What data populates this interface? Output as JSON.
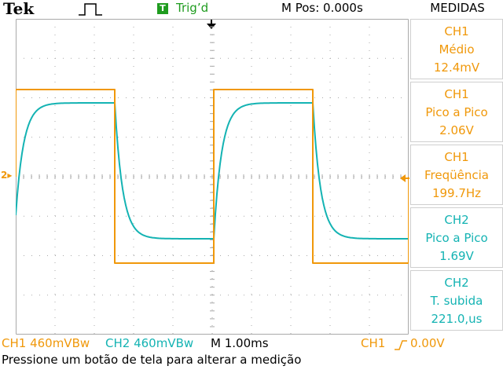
{
  "header": {
    "brand": "Tek",
    "acquisition_icon": "single-pulse-icon",
    "trigger_badge": "T",
    "trigger_status": "Trig’d",
    "horizontal_position": "M Pos: 0.000s",
    "menu_title": "MEDIDAS"
  },
  "colors": {
    "ch1": "#f0980a",
    "ch2": "#14b3b3",
    "trigger_badge": "#1f9c1f",
    "grid": "#a9a9a9"
  },
  "measurements": [
    {
      "channel": "CH1",
      "label": "Médio",
      "value": "12.4mV"
    },
    {
      "channel": "CH1",
      "label": "Pico a Pico",
      "value": "2.06V"
    },
    {
      "channel": "CH1",
      "label": "Freqüência",
      "value": "199.7Hz"
    },
    {
      "channel": "CH2",
      "label": "Pico a Pico",
      "value": "1.69V"
    },
    {
      "channel": "CH2",
      "label": "T. subida",
      "value": "221.0,us"
    }
  ],
  "status": {
    "ch1_scale": "CH1  460mVBw",
    "ch2_scale": "CH2  460mVBw",
    "timebase": "M 1.00ms",
    "trigger_source": "CH1",
    "trigger_slope_icon": "rising-edge-icon",
    "trigger_level": "0.00V"
  },
  "markers": {
    "ch1_ground": "2"
  },
  "message": "Pressione um botão de tela para alterar a medição"
}
